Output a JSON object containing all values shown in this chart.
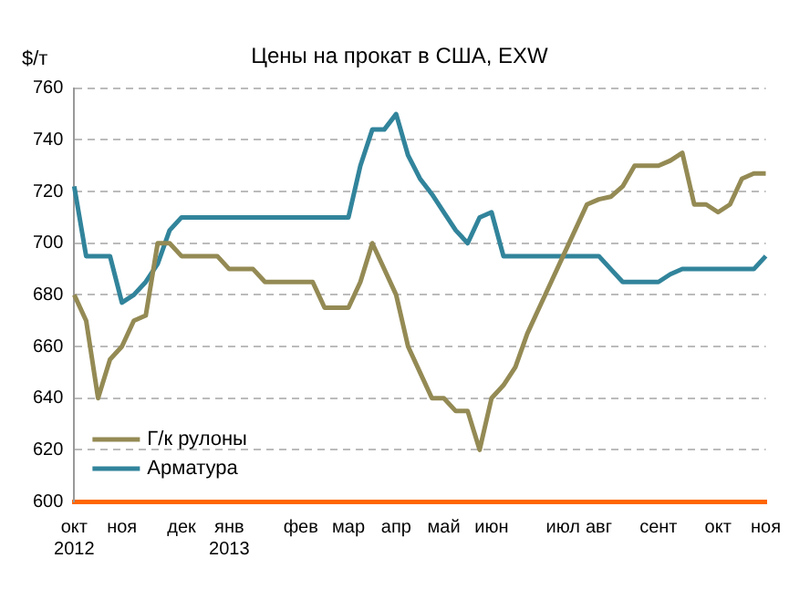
{
  "chart_data": {
    "type": "line",
    "title": "Цены на прокат в США, EXW",
    "ylabel": "$/т",
    "categories": [
      "окт\n2012",
      null,
      null,
      null,
      "ноя",
      null,
      null,
      null,
      null,
      "дек",
      null,
      null,
      null,
      "янв\n2013",
      null,
      null,
      null,
      null,
      null,
      "фев",
      null,
      null,
      null,
      "мар",
      null,
      null,
      null,
      "апр",
      null,
      null,
      null,
      "май",
      null,
      null,
      null,
      "июн",
      null,
      null,
      null,
      null,
      null,
      "июл",
      null,
      null,
      "авг",
      null,
      null,
      null,
      null,
      "сент",
      null,
      null,
      null,
      null,
      "окт",
      null,
      null,
      null,
      "ноя"
    ],
    "series": [
      {
        "name": "Г/к рулоны",
        "color": "#948a54",
        "values": [
          680,
          670,
          640,
          655,
          660,
          670,
          672,
          700,
          700,
          695,
          695,
          695,
          695,
          690,
          690,
          690,
          685,
          685,
          685,
          685,
          685,
          675,
          675,
          675,
          685,
          700,
          690,
          680,
          660,
          650,
          640,
          640,
          635,
          635,
          620,
          640,
          645,
          652,
          665,
          675,
          685,
          695,
          705,
          715,
          717,
          718,
          722,
          730,
          730,
          730,
          732,
          735,
          715,
          715,
          712,
          715,
          725,
          727,
          727
        ]
      },
      {
        "name": "Арматура",
        "color": "#31849b",
        "values": [
          722,
          695,
          695,
          695,
          677,
          680,
          685,
          692,
          705,
          710,
          710,
          710,
          710,
          710,
          710,
          710,
          710,
          710,
          710,
          710,
          710,
          710,
          710,
          710,
          730,
          744,
          744,
          750,
          734,
          725,
          719,
          712,
          705,
          700,
          710,
          712,
          695,
          695,
          695,
          695,
          695,
          695,
          695,
          695,
          695,
          690,
          685,
          685,
          685,
          685,
          688,
          690,
          690,
          690,
          690,
          690,
          690,
          690,
          695
        ]
      }
    ],
    "ylim": [
      600,
      760
    ],
    "yticks": [
      600,
      620,
      640,
      660,
      680,
      700,
      720,
      740,
      760
    ],
    "grid": "y",
    "legend": "bottom left",
    "line_style": "solid",
    "marker": "none"
  }
}
